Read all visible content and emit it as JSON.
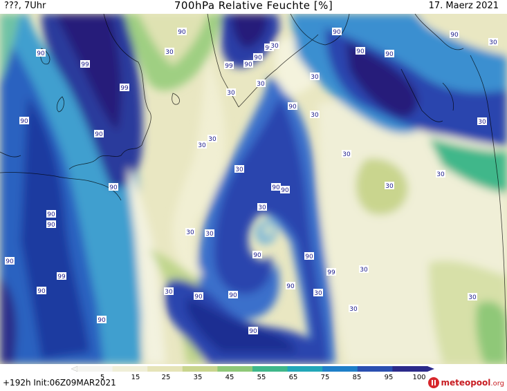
{
  "header": {
    "left": "???, 7Uhr",
    "title": "700hPa Relative Feuchte [%]",
    "date": "17. Maerz 2021"
  },
  "colorbar": {
    "ticks": [
      "5",
      "15",
      "25",
      "35",
      "45",
      "55",
      "65",
      "75",
      "85",
      "95",
      "100"
    ],
    "colors": [
      "#f4f4f0",
      "#f0efd8",
      "#e6e4b8",
      "#c9d58e",
      "#8fc878",
      "#3fb78a",
      "#22a7b8",
      "#1e7fc8",
      "#2a4fb0",
      "#2b2a8a"
    ]
  },
  "footer": {
    "run": "+192h Init:06Z09MAR2021",
    "logo_main": "meteopool",
    "logo_suffix": ".org"
  },
  "labels": {
    "ninety": "90",
    "ninetynine": "99",
    "thirty": "30"
  }
}
